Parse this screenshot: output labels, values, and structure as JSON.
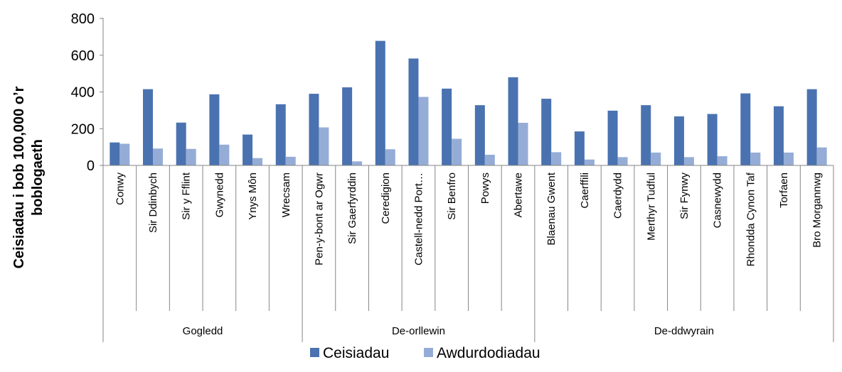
{
  "chart_data": {
    "type": "bar",
    "ylabel_lines": [
      "Ceisiadau i bob 100,000 o’r",
      "boblogaeth"
    ],
    "xlabel": "",
    "ylim": [
      0,
      800
    ],
    "yticks": [
      0,
      200,
      400,
      600,
      800
    ],
    "categories": [
      "Conwy",
      "Sir Ddinbych",
      "Sir y Fflint",
      "Gwynedd",
      "Ynys Môn",
      "Wrecsam",
      "Pen-y-bont ar Ogwr",
      "Sir Gaerfyrddin",
      "Ceredigion",
      "Castell-nedd Port…",
      "Sir Benfro",
      "Powys",
      "Abertawe",
      "Blaenau Gwent",
      "Caerffili",
      "Caerdydd",
      "Merthyr Tudful",
      "Sir Fynwy",
      "Casnewydd",
      "Rhondda Cynon Taf",
      "Torfaen",
      "Bro Morgannwg"
    ],
    "groups": [
      {
        "label": "Gogledd",
        "start": 0,
        "end": 5
      },
      {
        "label": "De-orllewin",
        "start": 6,
        "end": 12
      },
      {
        "label": "De-ddwyrain",
        "start": 13,
        "end": 21
      }
    ],
    "series": [
      {
        "name": "Ceisiadau",
        "color": "#4a72b0",
        "values": [
          125,
          415,
          233,
          387,
          168,
          333,
          390,
          425,
          678,
          582,
          418,
          328,
          480,
          363,
          185,
          298,
          328,
          267,
          280,
          392,
          322,
          415
        ]
      },
      {
        "name": "Awdurdodiadau",
        "color": "#95add6",
        "values": [
          118,
          92,
          90,
          113,
          40,
          47,
          207,
          22,
          88,
          373,
          145,
          58,
          232,
          72,
          32,
          45,
          70,
          45,
          50,
          70,
          70,
          98
        ]
      }
    ],
    "grid": false,
    "legend_position": "bottom"
  }
}
